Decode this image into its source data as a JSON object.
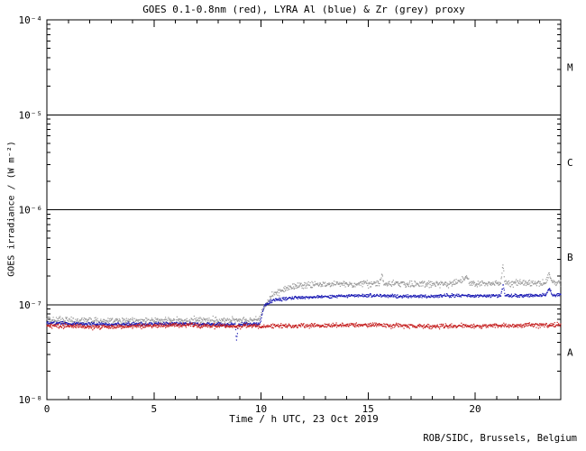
{
  "window": {
    "background": "#ffffff"
  },
  "credit": "ROB/SIDC, Brussels, Belgium",
  "chart_data": {
    "type": "scatter",
    "title": "GOES 0.1-0.8nm (red), LYRA Al (blue) & Zr (grey) proxy",
    "xlabel": "Time / h UTC, 23 Oct 2019",
    "ylabel": "GOES irradiance / (W m⁻²)",
    "grid": false,
    "legend_position": "encoded-in-title",
    "x_axis": {
      "min": 0,
      "max": 24,
      "minor_tick_step": 1,
      "major_ticks": [
        {
          "pos": 0,
          "label": "0"
        },
        {
          "pos": 5,
          "label": "5"
        },
        {
          "pos": 10,
          "label": "10"
        },
        {
          "pos": 15,
          "label": "15"
        },
        {
          "pos": 20,
          "label": "20"
        }
      ]
    },
    "y_axis": {
      "scale": "log",
      "min": 1e-08,
      "max": 0.0001,
      "ticks": [
        {
          "value": 0.0001,
          "label": "10⁻⁴"
        },
        {
          "value": 1e-05,
          "label": "10⁻⁵"
        },
        {
          "value": 1e-06,
          "label": "10⁻⁶"
        },
        {
          "value": 1e-07,
          "label": "10⁻⁷"
        },
        {
          "value": 1e-08,
          "label": "10⁻⁸"
        }
      ]
    },
    "hlines": [
      1e-05,
      1e-06,
      1e-07
    ],
    "flare_classes": [
      {
        "label": "M",
        "center_value": 3.16e-05
      },
      {
        "label": "C",
        "center_value": 3.16e-06
      },
      {
        "label": "B",
        "center_value": 3.16e-07
      },
      {
        "label": "A",
        "center_value": 3.16e-08
      }
    ],
    "series": [
      {
        "id": "lyra-zr-grey",
        "name": "LYRA Zr proxy",
        "color": "#9a9a9a",
        "noise": 0.12,
        "points": [
          [
            0,
            6.9e-08
          ],
          [
            3,
            6.7e-08
          ],
          [
            6,
            6.8e-08
          ],
          [
            9.9,
            6.9e-08
          ],
          [
            10.15,
            9.2e-08
          ],
          [
            10.5,
            1.25e-07
          ],
          [
            11.2,
            1.5e-07
          ],
          [
            12,
            1.6e-07
          ],
          [
            13.5,
            1.65e-07
          ],
          [
            15,
            1.66e-07
          ],
          [
            15.55,
            1.66e-07
          ],
          [
            15.65,
            2.05e-07
          ],
          [
            15.75,
            1.66e-07
          ],
          [
            17,
            1.64e-07
          ],
          [
            19,
            1.66e-07
          ],
          [
            19.65,
            1.92e-07
          ],
          [
            19.75,
            1.66e-07
          ],
          [
            21.2,
            1.68e-07
          ],
          [
            21.3,
            2.55e-07
          ],
          [
            21.4,
            1.68e-07
          ],
          [
            23.3,
            1.68e-07
          ],
          [
            23.45,
            2.2e-07
          ],
          [
            23.6,
            1.7e-07
          ],
          [
            24,
            1.72e-07
          ]
        ]
      },
      {
        "id": "lyra-al-blue",
        "name": "LYRA Al proxy",
        "color": "#1a1ab4",
        "noise": 0.06,
        "points": [
          [
            0,
            6.4e-08
          ],
          [
            3,
            6.2e-08
          ],
          [
            6,
            6.3e-08
          ],
          [
            8.8,
            6.2e-08
          ],
          [
            8.86,
            4.2e-08
          ],
          [
            8.95,
            6.2e-08
          ],
          [
            9.95,
            6.3e-08
          ],
          [
            10.15,
            9.8e-08
          ],
          [
            10.6,
            1.12e-07
          ],
          [
            11.5,
            1.18e-07
          ],
          [
            13,
            1.22e-07
          ],
          [
            15,
            1.25e-07
          ],
          [
            17,
            1.22e-07
          ],
          [
            19,
            1.24e-07
          ],
          [
            21.2,
            1.24e-07
          ],
          [
            21.3,
            1.62e-07
          ],
          [
            21.4,
            1.24e-07
          ],
          [
            23.3,
            1.25e-07
          ],
          [
            23.45,
            1.5e-07
          ],
          [
            23.6,
            1.26e-07
          ],
          [
            24,
            1.27e-07
          ]
        ]
      },
      {
        "id": "goes-red",
        "name": "GOES 0.1-0.8nm",
        "color": "#c41a1a",
        "noise": 0.08,
        "points": [
          [
            0,
            6e-08
          ],
          [
            3,
            5.8e-08
          ],
          [
            6,
            6.1e-08
          ],
          [
            9,
            5.9e-08
          ],
          [
            12,
            6e-08
          ],
          [
            15,
            6.1e-08
          ],
          [
            18,
            5.9e-08
          ],
          [
            21,
            6e-08
          ],
          [
            24,
            6.1e-08
          ]
        ]
      }
    ]
  }
}
